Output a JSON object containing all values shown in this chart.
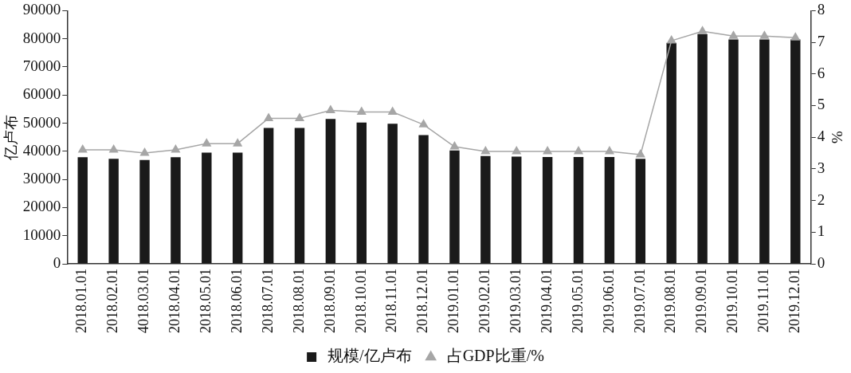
{
  "chart_data": {
    "type": "bar",
    "ylabel": "亿卢布",
    "y2label": "%",
    "categories": [
      "2018.01.01",
      "2018.02.01",
      "4018.03.01",
      "2018.04.01",
      "2018.05.01",
      "2018.06.01",
      "2018.07.01",
      "2018.08.01",
      "2018.09.01",
      "2018.10.01",
      "2018.11.01",
      "2018.12.01",
      "2019.01.01",
      "2019.02.01",
      "2019.03.01",
      "2019.04.01",
      "2019.05.01",
      "2019.06.01",
      "2019.07.01",
      "2019.08.01",
      "2019.09.01",
      "2019.10.01",
      "2019.11.01",
      "2019.12.01"
    ],
    "series": [
      {
        "name": "规模/亿卢布",
        "color": "#1a1a1a",
        "values": [
          37900,
          37300,
          36900,
          37900,
          39500,
          39500,
          48300,
          48300,
          51500,
          50200,
          49800,
          45800,
          40300,
          38300,
          38100,
          38000,
          38000,
          38000,
          37300,
          78600,
          81700,
          79800,
          79800,
          79800
        ]
      },
      {
        "name": "占GDP比重/%",
        "type": "line",
        "axis": "y2",
        "color": "#a6a6a6",
        "marker": "triangle",
        "values": [
          3.6,
          3.6,
          3.5,
          3.6,
          3.8,
          3.8,
          4.6,
          4.6,
          4.85,
          4.8,
          4.8,
          4.4,
          3.7,
          3.55,
          3.55,
          3.55,
          3.55,
          3.55,
          3.45,
          7.05,
          7.35,
          7.2,
          7.2,
          7.15
        ]
      }
    ],
    "ylim": [
      0,
      90000
    ],
    "yticks": [
      0,
      10000,
      20000,
      30000,
      40000,
      50000,
      60000,
      70000,
      80000,
      90000
    ],
    "y2lim": [
      0,
      8
    ],
    "y2ticks": [
      0,
      1,
      2,
      3,
      4,
      5,
      6,
      7,
      8
    ],
    "grid": false,
    "legend": "bottom"
  }
}
